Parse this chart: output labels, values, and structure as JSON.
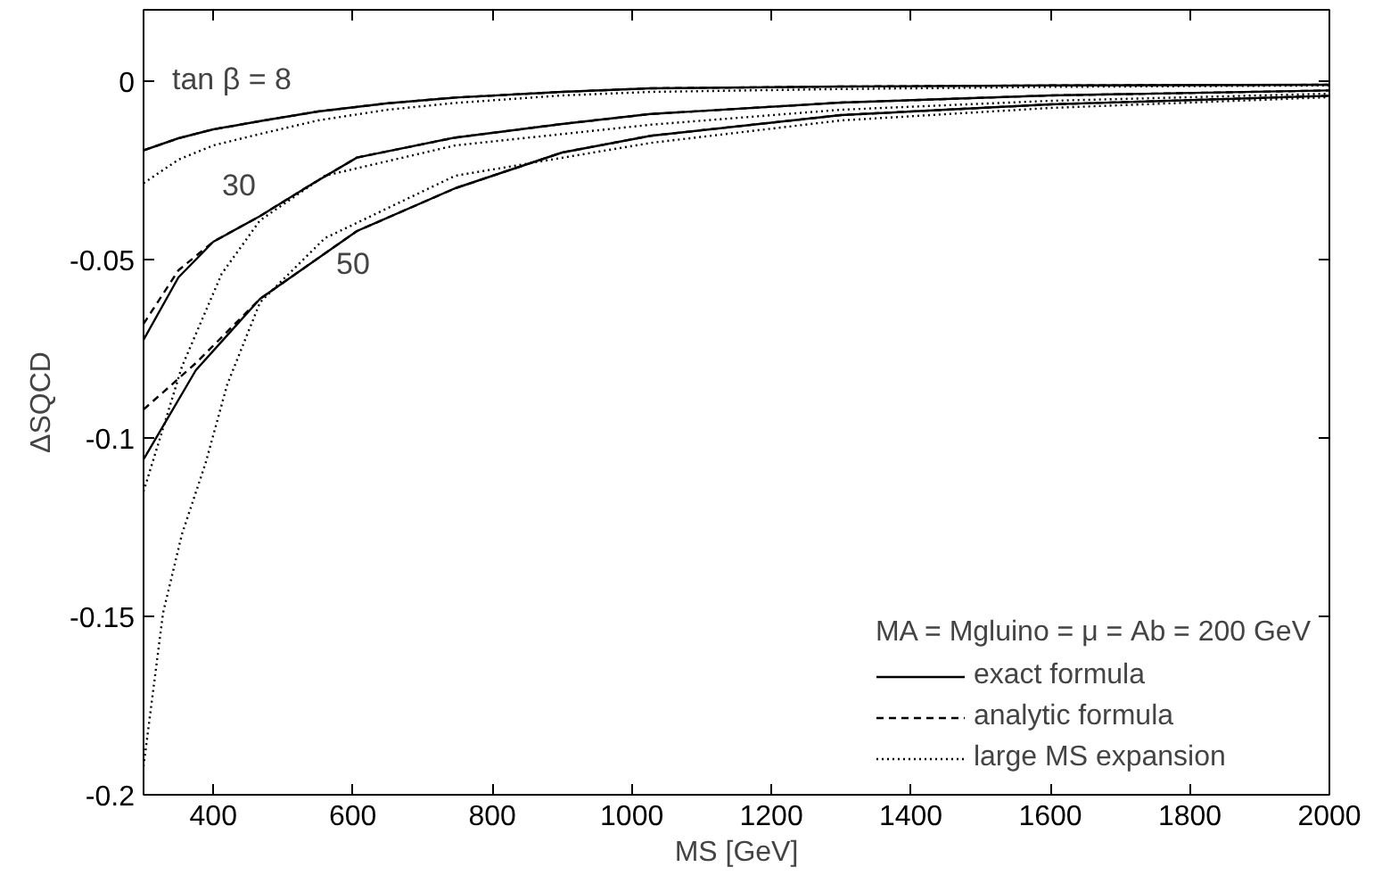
{
  "chart_data": {
    "type": "line",
    "xlabel": "MS [GeV]",
    "ylabel": "ΔSQCD",
    "legend_title": "MA = Mgluino = μ = Ab = 200 GeV",
    "legend": "bottom right",
    "grid": false,
    "marker": "none",
    "xlim": [
      300,
      2000
    ],
    "xticks": [
      400,
      600,
      800,
      1000,
      1200,
      1400,
      1600,
      1800,
      2000
    ],
    "ylim": [
      -0.2,
      0.02
    ],
    "yticks": [
      {
        "value": -0.2,
        "label": "-0.2"
      },
      {
        "value": -0.15,
        "label": "-0.15"
      },
      {
        "value": -0.1,
        "label": "-0.1"
      },
      {
        "value": -0.05,
        "label": "-0.05"
      },
      {
        "value": 0,
        "label": "0"
      }
    ],
    "annotations": [
      "tan β = 8",
      "30",
      "50"
    ],
    "series": [
      {
        "name": "exact formula",
        "color": "#000000",
        "line_style": "solid",
        "x": [
          300,
          350,
          400,
          467,
          550,
          650,
          747,
          900,
          1027,
          1300,
          1600,
          2000
        ],
        "values": [
          -0.0194,
          -0.016,
          -0.0135,
          -0.0112,
          -0.0085,
          -0.0062,
          -0.0046,
          -0.003,
          -0.002,
          -0.0015,
          -0.0012,
          -0.001
        ]
      },
      {
        "name": "analytic formula",
        "color": "#000000",
        "line_style": "dashed",
        "x": [
          300,
          350,
          400,
          467,
          550,
          650,
          747,
          900,
          1027,
          1300,
          1600,
          2000
        ],
        "values": [
          -0.0194,
          -0.016,
          -0.0135,
          -0.0112,
          -0.0085,
          -0.0062,
          -0.0046,
          -0.003,
          -0.002,
          -0.0015,
          -0.0012,
          -0.001
        ]
      },
      {
        "name": "large MS expansion",
        "color": "#000000",
        "line_style": "dotted",
        "x": [
          300,
          350,
          400,
          467,
          550,
          650,
          747,
          900,
          1027,
          1300,
          1600,
          2000
        ],
        "values": [
          -0.0286,
          -0.022,
          -0.018,
          -0.0148,
          -0.011,
          -0.008,
          -0.0061,
          -0.004,
          -0.003,
          -0.0022,
          -0.0016,
          -0.0012
        ]
      },
      {
        "color": "#000000",
        "line_style": "solid",
        "x": [
          300,
          350,
          400,
          467,
          540,
          606,
          747,
          900,
          1027,
          1300,
          1600,
          2000
        ],
        "values": [
          -0.0725,
          -0.055,
          -0.045,
          -0.0378,
          -0.029,
          -0.0214,
          -0.0158,
          -0.012,
          -0.0092,
          -0.006,
          -0.004,
          -0.0026
        ]
      },
      {
        "color": "#000000",
        "line_style": "dashed",
        "x": [
          300,
          350,
          400,
          467,
          540,
          606,
          747,
          900,
          1027,
          1300,
          1600,
          2000
        ],
        "values": [
          -0.068,
          -0.053,
          -0.045,
          -0.0378,
          -0.029,
          -0.0214,
          -0.0158,
          -0.012,
          -0.0092,
          -0.006,
          -0.004,
          -0.0026
        ]
      },
      {
        "color": "#000000",
        "line_style": "dotted",
        "x": [
          300,
          330,
          355,
          412,
          467,
          560,
          747,
          1027,
          1300,
          1600,
          2000
        ],
        "values": [
          -0.115,
          -0.096,
          -0.08,
          -0.054,
          -0.039,
          -0.0265,
          -0.018,
          -0.0122,
          -0.008,
          -0.0055,
          -0.0035
        ]
      },
      {
        "color": "#000000",
        "line_style": "solid",
        "x": [
          300,
          375,
          467,
          606,
          747,
          900,
          1027,
          1300,
          1600,
          2000
        ],
        "values": [
          -0.106,
          -0.081,
          -0.061,
          -0.042,
          -0.03,
          -0.02,
          -0.0153,
          -0.0095,
          -0.0065,
          -0.0041
        ]
      },
      {
        "color": "#000000",
        "line_style": "dashed",
        "x": [
          300,
          335,
          375,
          467,
          606,
          747,
          900,
          1027,
          1300,
          1600,
          2000
        ],
        "values": [
          -0.092,
          -0.086,
          -0.079,
          -0.061,
          -0.042,
          -0.03,
          -0.02,
          -0.0153,
          -0.0095,
          -0.0065,
          -0.0041
        ]
      },
      {
        "color": "#000000",
        "line_style": "dotted",
        "x": [
          300,
          328,
          355,
          389,
          420,
          467,
          560,
          747,
          1027,
          1300,
          1600,
          2000
        ],
        "values": [
          -0.192,
          -0.149,
          -0.127,
          -0.107,
          -0.085,
          -0.062,
          -0.044,
          -0.0265,
          -0.0173,
          -0.011,
          -0.0075,
          -0.0045
        ]
      }
    ]
  }
}
